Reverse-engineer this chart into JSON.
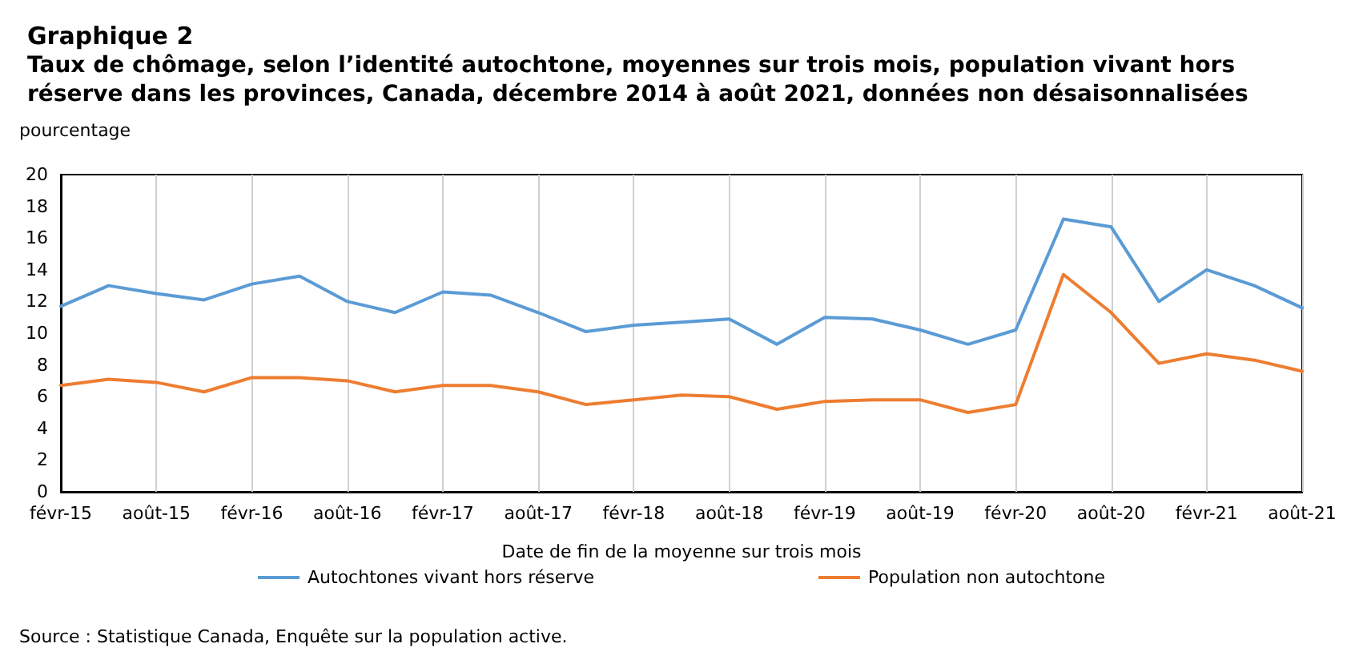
{
  "chart_data": {
    "type": "line",
    "title": "Graphique 2",
    "subtitle": "Taux de chômage, selon l’identité autochtone, moyennes sur trois mois, population vivant hors réserve dans les provinces, Canada, décembre 2014 à août 2021, données non désaisonnalisées",
    "ylabel": "pourcentage",
    "xlabel": "Date de fin de la moyenne sur trois mois",
    "annotations": [
      "Source : Statistique Canada, Enquête sur la population active."
    ],
    "categories": [
      "févr-15",
      null,
      "août-15",
      null,
      "févr-16",
      null,
      "août-16",
      null,
      "févr-17",
      null,
      "août-17",
      null,
      "févr-18",
      null,
      "août-18",
      null,
      "févr-19",
      null,
      "août-19",
      null,
      "févr-20",
      null,
      "août-20",
      null,
      "févr-21",
      null,
      "août-21"
    ],
    "series": [
      {
        "name": "Autochtones vivant hors réserve",
        "color": "#5b9bd5",
        "values": [
          11.7,
          13.0,
          12.5,
          12.1,
          13.1,
          13.6,
          12.0,
          11.3,
          12.6,
          12.4,
          11.3,
          10.1,
          10.5,
          10.7,
          10.9,
          9.3,
          11.0,
          10.9,
          10.2,
          9.3,
          10.2,
          17.2,
          16.7,
          12.0,
          14.0,
          13.0,
          11.6
        ]
      },
      {
        "name": "Population non autochtone",
        "color": "#ed7d31",
        "values": [
          6.7,
          7.1,
          6.9,
          6.3,
          7.2,
          7.2,
          7.0,
          6.3,
          6.7,
          6.7,
          6.3,
          5.5,
          5.8,
          6.1,
          6.0,
          5.2,
          5.7,
          5.8,
          5.8,
          5.0,
          5.5,
          13.7,
          11.3,
          8.1,
          8.7,
          8.3,
          7.6
        ]
      }
    ],
    "ylim": [
      0,
      20
    ],
    "yticks": [
      0,
      2,
      4,
      6,
      8,
      10,
      12,
      14,
      16,
      18,
      20
    ],
    "grid": "x",
    "legend": "bottom",
    "marker": "none",
    "line_style": "solid"
  }
}
